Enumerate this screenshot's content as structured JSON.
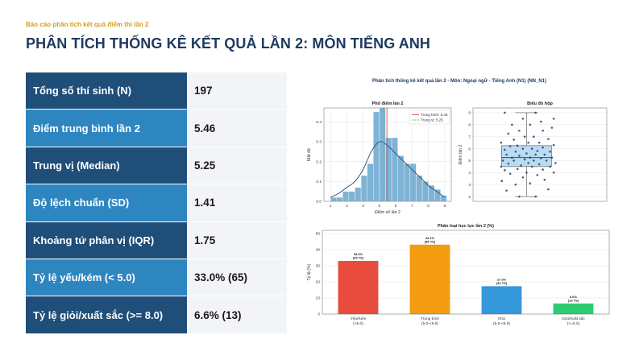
{
  "header": {
    "eyebrow": "Báo cáo phân tích kết quả điểm thi lần 2",
    "title": "PHÂN TÍCH THỐNG KÊ KẾT QUẢ LẦN 2: MÔN TIẾNG ANH"
  },
  "stats": [
    {
      "label": "Tổng số thí sinh (N)",
      "value": "197"
    },
    {
      "label": "Điểm trung bình lần 2",
      "value": "5.46"
    },
    {
      "label": "Trung vị (Median)",
      "value": "5.25"
    },
    {
      "label": "Độ lệch chuẩn (SD)",
      "value": "1.41"
    },
    {
      "label": "Khoảng tứ phân vị (IQR)",
      "value": "1.75"
    },
    {
      "label": "Tỷ lệ yếu/kém (< 5.0)",
      "value": "33.0% (65)"
    },
    {
      "label": "Tỷ lệ giỏi/xuất sắc (>= 8.0)",
      "value": "6.6% (13)"
    }
  ],
  "figure": {
    "suptitle": "Phân tích thống kê kết quả lần 2 - Môn: Ngoại ngữ - Tiếng Anh (N1) (NN_N1)"
  },
  "chart_data": [
    {
      "type": "bar",
      "title": "Phổ điểm lần 2",
      "xlabel": "Điểm số lần 2",
      "ylabel": "Mật độ",
      "xlim": [
        1.6,
        9.4
      ],
      "ylim": [
        0,
        0.47
      ],
      "xticks": [
        2,
        3,
        4,
        5,
        6,
        7,
        8,
        9
      ],
      "yticks": [
        0.0,
        0.1,
        0.2,
        0.3,
        0.4
      ],
      "bin_width": 0.375,
      "bin_starts": [
        2.0,
        2.375,
        2.75,
        3.125,
        3.5,
        3.875,
        4.25,
        4.625,
        5.0,
        5.375,
        5.75,
        6.125,
        6.5,
        6.875,
        7.25,
        7.625,
        8.0,
        8.375,
        8.75
      ],
      "density": [
        0.02,
        0.02,
        0.05,
        0.05,
        0.07,
        0.13,
        0.19,
        0.45,
        0.47,
        0.32,
        0.32,
        0.23,
        0.19,
        0.19,
        0.13,
        0.1,
        0.08,
        0.06,
        0.03
      ],
      "kde": {
        "x": [
          2.0,
          2.5,
          3.0,
          3.5,
          4.0,
          4.5,
          5.0,
          5.5,
          6.0,
          6.5,
          7.0,
          7.5,
          8.0,
          8.5,
          9.0
        ],
        "y": [
          0.02,
          0.04,
          0.07,
          0.1,
          0.16,
          0.25,
          0.3,
          0.28,
          0.24,
          0.2,
          0.16,
          0.12,
          0.08,
          0.05,
          0.02
        ]
      },
      "lines": [
        {
          "name": "Trung bình: 5.46",
          "x": 5.46,
          "color": "#e74c3c",
          "style": "solid"
        },
        {
          "name": "Trung vị: 5.25",
          "x": 5.25,
          "color": "#2ecc71",
          "style": "dashed"
        }
      ],
      "bar_color": "#7fb3d5",
      "kde_color": "#1f4e79",
      "legend": "top-right",
      "grid": true
    },
    {
      "type": "scatter",
      "subtype": "box_with_points",
      "title": "Biểu đồ hộp",
      "ylabel": "Điểm lần 2",
      "ylim": [
        1.6,
        9.4
      ],
      "yticks": [
        2,
        3,
        4,
        5,
        6,
        7,
        8,
        9
      ],
      "box": {
        "min": 2.0,
        "q1": 4.5,
        "median": 5.25,
        "q3": 6.25,
        "max": 9.0
      },
      "points": [
        {
          "x": 0.6,
          "y": 2.0
        },
        {
          "x": 1.05,
          "y": 2.0
        },
        {
          "x": 0.25,
          "y": 2.5
        },
        {
          "x": 1.4,
          "y": 2.6
        },
        {
          "x": 0.5,
          "y": 3.0
        },
        {
          "x": 0.9,
          "y": 3.1
        },
        {
          "x": 1.3,
          "y": 3.4
        },
        {
          "x": 0.12,
          "y": 3.3
        },
        {
          "x": 0.7,
          "y": 3.6
        },
        {
          "x": 1.1,
          "y": 3.8
        },
        {
          "x": 0.35,
          "y": 3.9
        },
        {
          "x": 1.55,
          "y": 4.0
        },
        {
          "x": 0.8,
          "y": 4.0
        },
        {
          "x": 0.2,
          "y": 4.2
        },
        {
          "x": 1.25,
          "y": 4.25
        },
        {
          "x": 0.55,
          "y": 4.3
        },
        {
          "x": 0.95,
          "y": 4.5
        },
        {
          "x": 1.45,
          "y": 4.5
        },
        {
          "x": 0.1,
          "y": 4.5
        },
        {
          "x": 0.65,
          "y": 4.6
        },
        {
          "x": 1.15,
          "y": 4.7
        },
        {
          "x": 0.3,
          "y": 4.75
        },
        {
          "x": 0.85,
          "y": 4.8
        },
        {
          "x": 1.6,
          "y": 4.8
        },
        {
          "x": 0.45,
          "y": 5.0
        },
        {
          "x": 1.0,
          "y": 5.0
        },
        {
          "x": 1.35,
          "y": 5.0
        },
        {
          "x": 0.15,
          "y": 5.0
        },
        {
          "x": 0.75,
          "y": 5.1
        },
        {
          "x": 1.2,
          "y": 5.2
        },
        {
          "x": 0.4,
          "y": 5.25
        },
        {
          "x": 0.9,
          "y": 5.25
        },
        {
          "x": 1.5,
          "y": 5.25
        },
        {
          "x": 0.6,
          "y": 5.4
        },
        {
          "x": 1.05,
          "y": 5.5
        },
        {
          "x": 0.25,
          "y": 5.5
        },
        {
          "x": 1.3,
          "y": 5.5
        },
        {
          "x": 0.8,
          "y": 5.6
        },
        {
          "x": 0.5,
          "y": 5.75
        },
        {
          "x": 1.1,
          "y": 5.8
        },
        {
          "x": 1.45,
          "y": 5.75
        },
        {
          "x": 0.2,
          "y": 5.9
        },
        {
          "x": 0.7,
          "y": 6.0
        },
        {
          "x": 0.95,
          "y": 6.0
        },
        {
          "x": 1.25,
          "y": 6.1
        },
        {
          "x": 0.35,
          "y": 6.2
        },
        {
          "x": 0.55,
          "y": 6.25
        },
        {
          "x": 1.55,
          "y": 6.3
        },
        {
          "x": 0.85,
          "y": 6.5
        },
        {
          "x": 1.15,
          "y": 6.5
        },
        {
          "x": 0.1,
          "y": 6.5
        },
        {
          "x": 0.45,
          "y": 6.75
        },
        {
          "x": 1.4,
          "y": 6.8
        },
        {
          "x": 0.75,
          "y": 7.0
        },
        {
          "x": 1.0,
          "y": 7.0
        },
        {
          "x": 0.3,
          "y": 7.25
        },
        {
          "x": 1.25,
          "y": 7.5
        },
        {
          "x": 0.6,
          "y": 7.5
        },
        {
          "x": 1.5,
          "y": 7.75
        },
        {
          "x": 0.9,
          "y": 8.0
        },
        {
          "x": 0.4,
          "y": 8.0
        },
        {
          "x": 1.2,
          "y": 8.25
        },
        {
          "x": 1.55,
          "y": 8.5
        },
        {
          "x": 0.7,
          "y": 8.5
        },
        {
          "x": 1.05,
          "y": 9.0
        },
        {
          "x": 0.2,
          "y": 9.0
        }
      ],
      "point_color": "#1f3a60",
      "box_color": "#aed6f1",
      "grid": true
    },
    {
      "type": "bar",
      "title": "Phân loại học lực lần 2 (%)",
      "ylabel": "Tỷ lệ (%)",
      "ylim": [
        0,
        52
      ],
      "yticks": [
        0,
        10,
        20,
        30,
        40,
        50
      ],
      "categories": [
        [
          "Yếu/Kém",
          "(<5.0)"
        ],
        [
          "Trung bình",
          "(5.0-<6.5)"
        ],
        [
          "Khá",
          "(6.5-<8.0)"
        ],
        [
          "Giỏi/Xuất sắc",
          "(>=8.0)"
        ]
      ],
      "values": [
        33.0,
        43.1,
        17.3,
        6.6
      ],
      "data_labels": [
        [
          "33.0%",
          "(65 TS)"
        ],
        [
          "43.1%",
          "(85 TS)"
        ],
        [
          "17.3%",
          "(34 TS)"
        ],
        [
          "6.6%",
          "(13 TS)"
        ]
      ],
      "colors": [
        "#e74c3c",
        "#f39c12",
        "#3498db",
        "#2ecc71"
      ],
      "grid": true
    }
  ]
}
